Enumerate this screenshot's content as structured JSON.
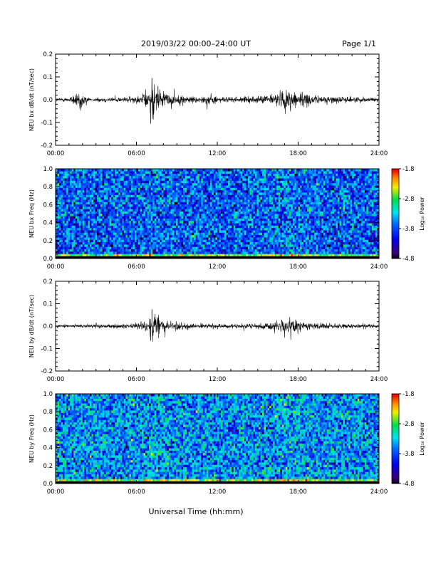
{
  "header": {
    "title": "2019/03/22  00:00–24:00 UT",
    "page": "Page 1/1"
  },
  "footer": {
    "xlabel": "Universal Time (hh:mm)"
  },
  "chart_data": [
    {
      "type": "line",
      "ylabel": "NEU bx dB/dt (nT/sec)",
      "xlim": [
        0,
        24
      ],
      "ylim": [
        -0.2,
        0.2
      ],
      "xticks": [
        "00:00",
        "06:00",
        "12:00",
        "18:00",
        "24:00"
      ],
      "yticks": [
        "-0.2",
        "-0.1",
        "0.0",
        "0.1",
        "0.2"
      ],
      "series": [
        {
          "values": [
            {
              "x": 0.0,
              "y": 0.008
            },
            {
              "x": 1.0,
              "y": 0.01
            },
            {
              "x": 1.6,
              "y": 0.04
            },
            {
              "x": 1.75,
              "y": -0.05
            },
            {
              "x": 3.0,
              "y": 0.012
            },
            {
              "x": 5.0,
              "y": 0.012
            },
            {
              "x": 6.3,
              "y": 0.02
            },
            {
              "x": 6.85,
              "y": 0.05
            },
            {
              "x": 7.05,
              "y": -0.105
            },
            {
              "x": 7.15,
              "y": 0.095
            },
            {
              "x": 7.6,
              "y": 0.06
            },
            {
              "x": 7.9,
              "y": 0.035
            },
            {
              "x": 9.0,
              "y": 0.022
            },
            {
              "x": 11.0,
              "y": 0.015
            },
            {
              "x": 11.45,
              "y": 0.035
            },
            {
              "x": 12.0,
              "y": 0.012
            },
            {
              "x": 15.0,
              "y": 0.015
            },
            {
              "x": 16.3,
              "y": 0.03
            },
            {
              "x": 16.8,
              "y": 0.045
            },
            {
              "x": 17.6,
              "y": 0.05
            },
            {
              "x": 18.3,
              "y": 0.04
            },
            {
              "x": 19.0,
              "y": 0.02
            },
            {
              "x": 24.0,
              "y": 0.01
            }
          ]
        }
      ]
    },
    {
      "type": "heatmap",
      "ylabel": "NEU bx Freq (Hz)",
      "xlim": [
        0,
        24
      ],
      "ylim": [
        0,
        1
      ],
      "xticks": [
        "00:00",
        "06:00",
        "12:00",
        "18:00",
        "24:00"
      ],
      "yticks": [
        "0.0",
        "0.2",
        "0.4",
        "0.6",
        "0.8",
        "1.0"
      ],
      "colorbar": {
        "label": "Log₁₀ Power",
        "ticks": [
          "-1.8",
          "-2.8",
          "-3.8",
          "-4.8"
        ],
        "range": [
          -4.8,
          -1.8
        ]
      },
      "description_values": {
        "background_level": -3.6,
        "low_freq_band_level": -2.6,
        "peak_time_hours": 17.6
      }
    },
    {
      "type": "line",
      "ylabel": "NEU by dB/dt (nT/sec)",
      "xlim": [
        0,
        24
      ],
      "ylim": [
        -0.2,
        0.2
      ],
      "xticks": [
        "00:00",
        "06:00",
        "12:00",
        "18:00",
        "24:00"
      ],
      "yticks": [
        "-0.2",
        "-0.1",
        "0.0",
        "0.1",
        "0.2"
      ],
      "series": [
        {
          "values": [
            {
              "x": 0.0,
              "y": 0.006
            },
            {
              "x": 2.0,
              "y": 0.008
            },
            {
              "x": 5.0,
              "y": 0.01
            },
            {
              "x": 6.8,
              "y": 0.02
            },
            {
              "x": 7.05,
              "y": -0.065
            },
            {
              "x": 7.15,
              "y": 0.075
            },
            {
              "x": 7.8,
              "y": 0.035
            },
            {
              "x": 9.0,
              "y": 0.018
            },
            {
              "x": 12.0,
              "y": 0.01
            },
            {
              "x": 15.0,
              "y": 0.012
            },
            {
              "x": 16.5,
              "y": 0.03
            },
            {
              "x": 17.3,
              "y": 0.04
            },
            {
              "x": 18.0,
              "y": 0.03
            },
            {
              "x": 19.0,
              "y": 0.015
            },
            {
              "x": 24.0,
              "y": 0.008
            }
          ]
        }
      ]
    },
    {
      "type": "heatmap",
      "ylabel": "NEU by Freq (Hz)",
      "xlim": [
        0,
        24
      ],
      "ylim": [
        0,
        1
      ],
      "xticks": [
        "00:00",
        "06:00",
        "12:00",
        "18:00",
        "24:00"
      ],
      "yticks": [
        "0.0",
        "0.2",
        "0.4",
        "0.6",
        "0.8",
        "1.0"
      ],
      "colorbar": {
        "label": "Log₁₀ Power",
        "ticks": [
          "-1.8",
          "-2.8",
          "-3.8",
          "-4.8"
        ],
        "range": [
          -4.8,
          -1.8
        ]
      },
      "description_values": {
        "background_level": -3.4,
        "low_freq_band_level": -2.5,
        "peak_time_hours": 17.6
      }
    }
  ]
}
